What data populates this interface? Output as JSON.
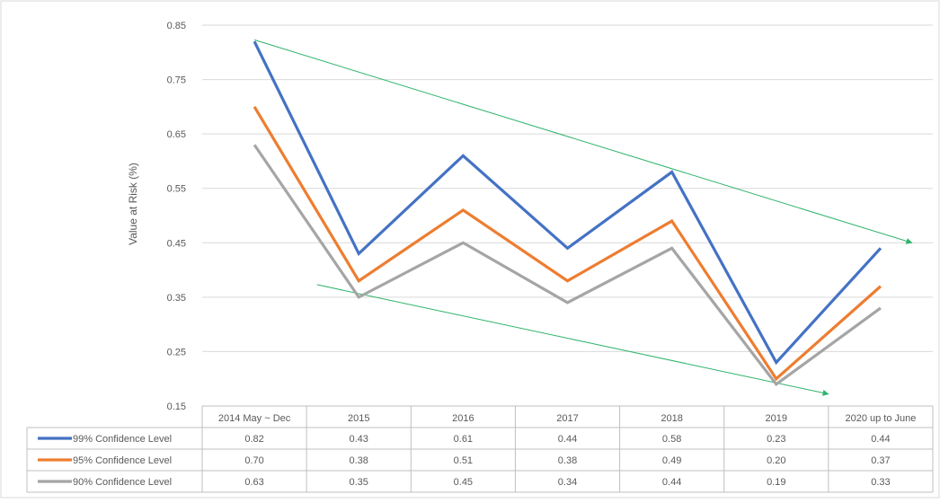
{
  "chart_data": {
    "type": "line",
    "categories": [
      "2014  May ~ Dec",
      "2015",
      "2016",
      "2017",
      "2018",
      "2019",
      "2020 up to June"
    ],
    "series": [
      {
        "name": "99% Confidence Level",
        "values": [
          0.82,
          0.43,
          0.61,
          0.44,
          0.58,
          0.23,
          0.44
        ],
        "labels": [
          "0.82",
          "0.43",
          "0.61",
          "0.44",
          "0.58",
          "0.23",
          "0.44"
        ],
        "color": "#4472C4"
      },
      {
        "name": "95% Confidence Level",
        "values": [
          0.7,
          0.38,
          0.51,
          0.38,
          0.49,
          0.2,
          0.37
        ],
        "labels": [
          "0.70",
          "0.38",
          "0.51",
          "0.38",
          "0.49",
          "0.20",
          "0.37"
        ],
        "color": "#ED7D31"
      },
      {
        "name": "90% Confidence Level",
        "values": [
          0.63,
          0.35,
          0.45,
          0.34,
          0.44,
          0.19,
          0.33
        ],
        "labels": [
          "0.63",
          "0.35",
          "0.45",
          "0.34",
          "0.44",
          "0.19",
          "0.33"
        ],
        "color": "#A5A5A5"
      }
    ],
    "ylabel": "Value at Risk (%)",
    "ylim": [
      0.15,
      0.85
    ],
    "yticks": [
      "0.85",
      "0.75",
      "0.65",
      "0.55",
      "0.45",
      "0.35",
      "0.25",
      "0.15"
    ],
    "grid": true,
    "data_table": true,
    "trend_lines": [
      {
        "color": "#2DB36A",
        "from": [
          0,
          0.823
        ],
        "to": [
          6.3,
          0.45
        ]
      },
      {
        "color": "#2DB36A",
        "from": [
          0.6,
          0.373
        ],
        "to": [
          5.5,
          0.172
        ]
      }
    ]
  }
}
